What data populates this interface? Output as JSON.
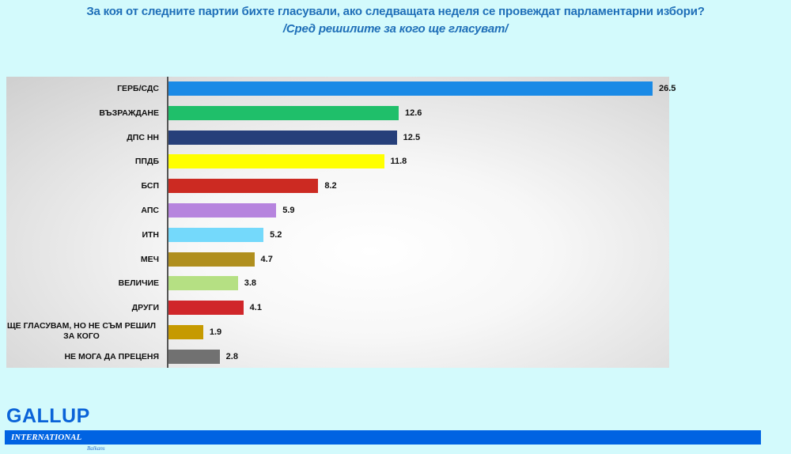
{
  "header": {
    "title": "За коя от следните партии бихте гласували, ако следващата неделя се провеждат парламентарни избори?",
    "subtitle": "/Сред решилите за кого ще гласуват/"
  },
  "chart_data": {
    "type": "bar",
    "orientation": "horizontal",
    "title": "За коя от следните партии бихте гласували, ако следващата неделя се провеждат парламентарни избори?",
    "subtitle": "/Сред решилите за кого ще гласуват/",
    "xlabel": "",
    "ylabel": "",
    "grid": false,
    "legend": null,
    "categories": [
      "ГЕРБ/СДС",
      "ВЪЗРАЖДАНЕ",
      "ДПС НН",
      "ППДБ",
      "БСП",
      "АПС",
      "ИТН",
      "МЕЧ",
      "ВЕЛИЧИЕ",
      "ДРУГИ",
      "ЩЕ ГЛАСУВАМ, НО НЕ СЪМ РЕШИЛ ЗА КОГО",
      "НЕ МОГА ДА ПРЕЦЕНЯ"
    ],
    "values": [
      26.5,
      12.6,
      12.5,
      11.8,
      8.2,
      5.9,
      5.2,
      4.7,
      3.8,
      4.1,
      1.9,
      2.8
    ],
    "colors": [
      "#1a8ae6",
      "#1fbf6a",
      "#263f7a",
      "#ffff00",
      "#cc2a22",
      "#b684de",
      "#74d9fb",
      "#b08f1e",
      "#b5e083",
      "#d0262a",
      "#c69a00",
      "#717171"
    ],
    "value_labels": [
      "26.5",
      "12.6",
      "12.5",
      "11.8",
      "8.2",
      "5.9",
      "5.2",
      "4.7",
      "3.8",
      "4.1",
      "1.9",
      "2.8"
    ],
    "xlim": [
      0,
      26.5
    ]
  },
  "bars": [
    {
      "label": "ГЕРБ/СДС",
      "value": "26.5"
    },
    {
      "label": "ВЪЗРАЖДАНЕ",
      "value": "12.6"
    },
    {
      "label": "ДПС НН",
      "value": "12.5"
    },
    {
      "label": "ППДБ",
      "value": "11.8"
    },
    {
      "label": "БСП",
      "value": "8.2"
    },
    {
      "label": "АПС",
      "value": "5.9"
    },
    {
      "label": "ИТН",
      "value": "5.2"
    },
    {
      "label": "МЕЧ",
      "value": "4.7"
    },
    {
      "label": "ВЕЛИЧИЕ",
      "value": "3.8"
    },
    {
      "label": "ДРУГИ",
      "value": "4.1"
    },
    {
      "label": "ЩЕ ГЛАСУВАМ, НО НЕ СЪМ РЕШИЛ ЗА КОГО",
      "label_line1": "ЩЕ ГЛАСУВАМ, НО НЕ СЪМ РЕШИЛ",
      "label_line2": "ЗА КОГО",
      "value": "1.9"
    },
    {
      "label": "НЕ МОГА ДА ПРЕЦЕНЯ",
      "value": "2.8"
    }
  ],
  "logo": {
    "name": "GALLUP",
    "band_text": "INTERNATIONAL",
    "region": "Balkans",
    "brand_color": "#0063e2"
  }
}
